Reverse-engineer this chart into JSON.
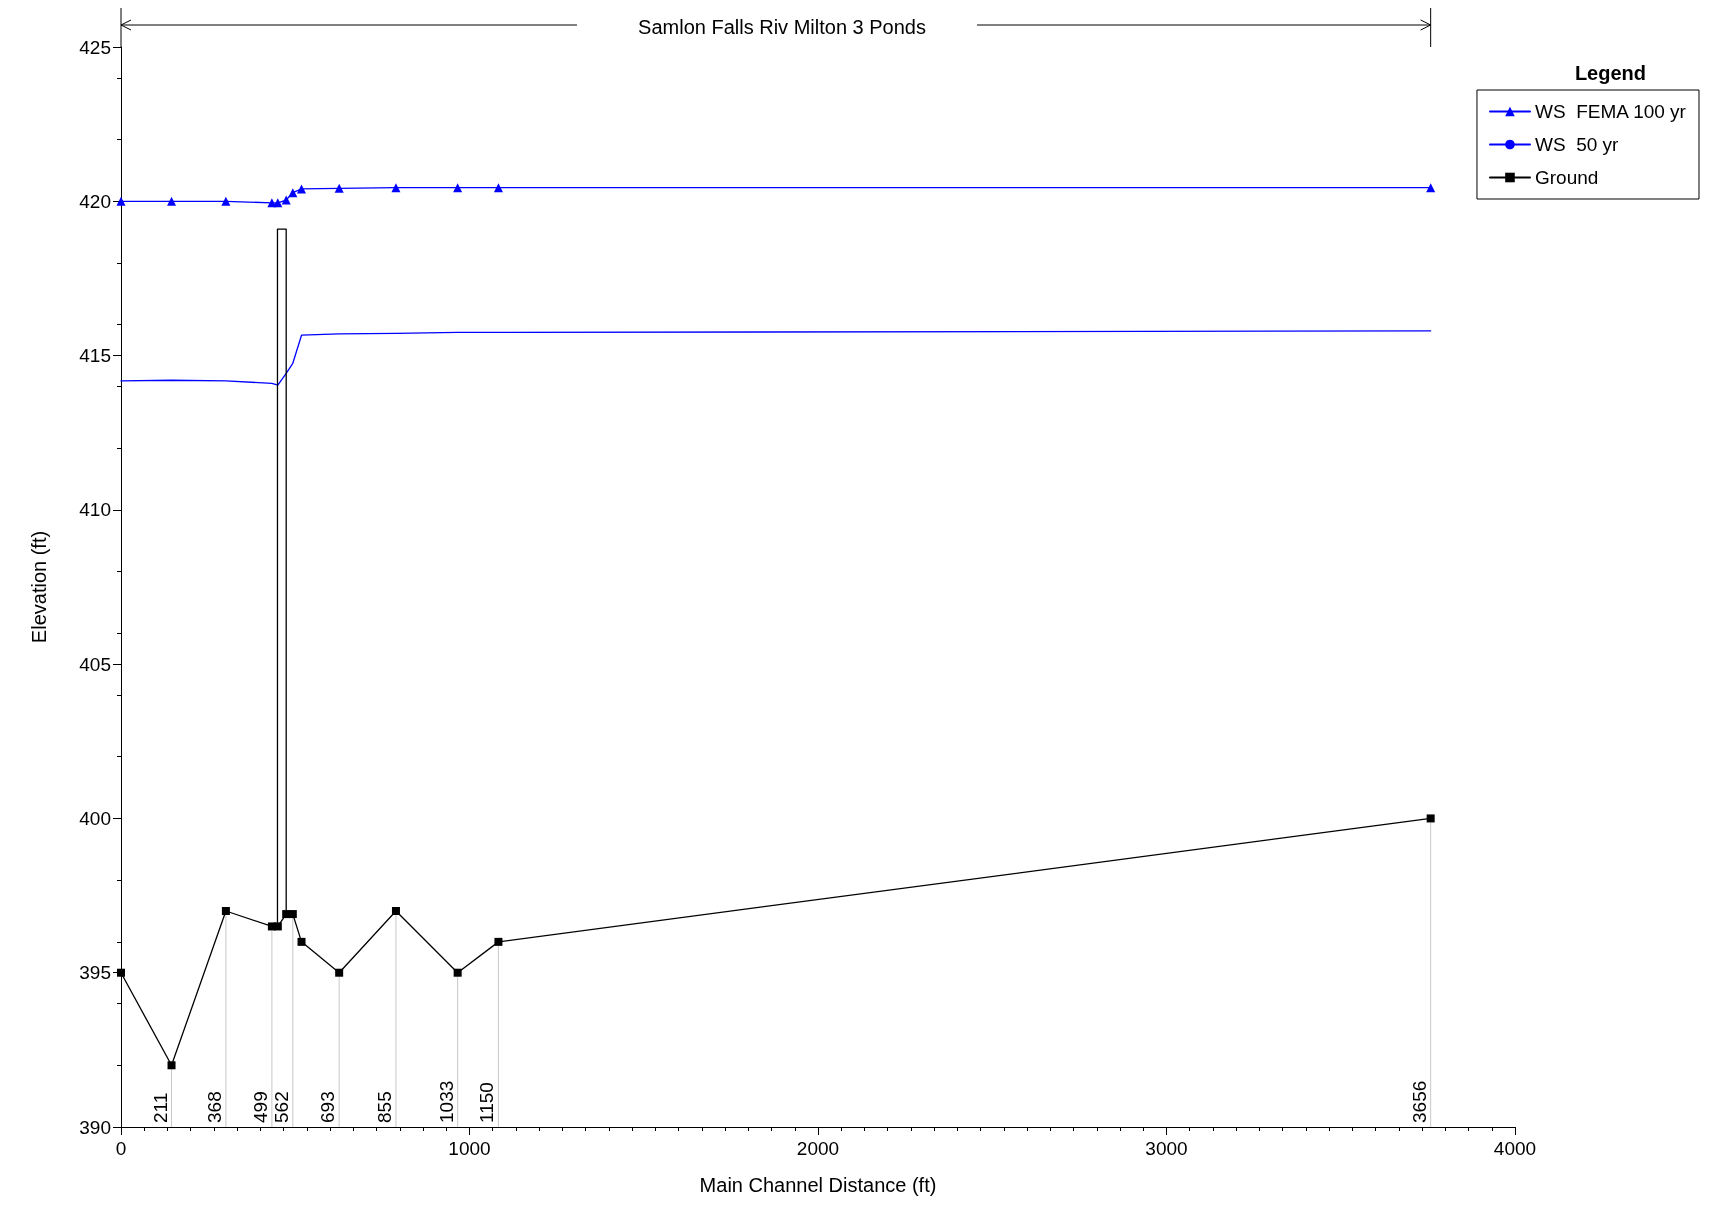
{
  "chart_data": {
    "type": "line",
    "title": "Samlon Falls Riv Milton 3 Ponds",
    "xlabel": "Main Channel Distance (ft)",
    "ylabel": "Elevation (ft)",
    "legend_title": "Legend",
    "xlim": [
      0,
      4000
    ],
    "xticks": [
      0,
      1000,
      2000,
      3000,
      4000
    ],
    "ylim": [
      390,
      425
    ],
    "yticks": [
      390,
      395,
      400,
      405,
      410,
      415,
      420,
      425
    ],
    "grid": false,
    "legend": "top right",
    "series": [
      {
        "name": "WS  FEMA 100 yr",
        "color": "#0000ff",
        "marker": "triangle",
        "x": [
          0,
          145,
          301,
          433,
          450,
          474,
          493,
          518,
          626,
          789,
          966,
          1083,
          3758
        ],
        "values": [
          420.0,
          420.0,
          420.0,
          419.95,
          419.95,
          420.04,
          420.28,
          420.4,
          420.42,
          420.44,
          420.44,
          420.44,
          420.44
        ]
      },
      {
        "name": "WS  50 yr",
        "color": "#0000ff",
        "marker": "none",
        "x": [
          0,
          145,
          301,
          433,
          450,
          474,
          493,
          518,
          626,
          789,
          966,
          1083,
          3758
        ],
        "values": [
          414.18,
          414.2,
          414.18,
          414.1,
          414.04,
          414.42,
          414.75,
          415.66,
          415.7,
          415.72,
          415.75,
          415.75,
          415.8
        ]
      },
      {
        "name": "Ground",
        "color": "#000000",
        "marker": "square",
        "x": [
          0,
          145,
          301,
          433,
          450,
          474,
          493,
          518,
          626,
          789,
          966,
          1083,
          3758
        ],
        "values": [
          395.0,
          392.0,
          397.0,
          396.5,
          396.5,
          396.9,
          396.9,
          396.0,
          395.0,
          397.0,
          395.0,
          396.0,
          400.0
        ]
      },
      {
        "color": "#000000",
        "marker": "none",
        "x": [
          449,
          449,
          474,
          474
        ],
        "values": [
          396.5,
          419.1,
          419.1,
          396.9
        ]
      }
    ],
    "annotations": [
      {
        "text": "211",
        "x": 145,
        "y": 392.0
      },
      {
        "text": "368",
        "x": 301,
        "y": 397.0
      },
      {
        "text": "499",
        "x": 433,
        "y": 396.5
      },
      {
        "text": "562",
        "x": 493,
        "y": 396.9
      },
      {
        "text": "693",
        "x": 626,
        "y": 395.0
      },
      {
        "text": "855",
        "x": 789,
        "y": 397.0
      },
      {
        "text": "1033",
        "x": 966,
        "y": 395.0
      },
      {
        "text": "1150",
        "x": 1083,
        "y": 396.0
      },
      {
        "text": "3656",
        "x": 3758,
        "y": 400.0
      }
    ]
  }
}
